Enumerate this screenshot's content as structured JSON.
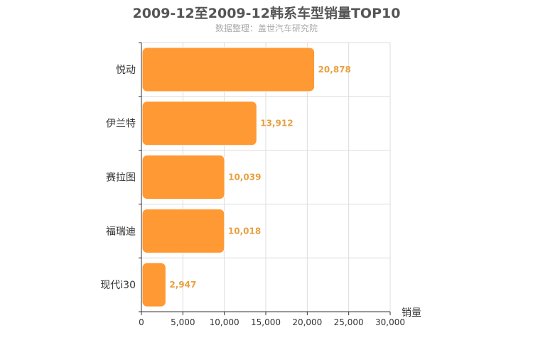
{
  "chart_data": {
    "type": "bar",
    "orientation": "horizontal",
    "title": "2009-12至2009-12韩系车型销量TOP10",
    "subtitle": "数据整理：盖世汽车研究院",
    "xlabel": "销量",
    "ylabel": "",
    "categories": [
      "悦动",
      "伊兰特",
      "赛拉图",
      "福瑞迪",
      "现代i30"
    ],
    "values": [
      20878,
      13912,
      10039,
      10018,
      2947
    ],
    "value_labels": [
      "20,878",
      "13,912",
      "10,039",
      "10,018",
      "2,947"
    ],
    "xlim": [
      0,
      30000
    ],
    "x_ticks": [
      0,
      5000,
      10000,
      15000,
      20000,
      25000,
      30000
    ],
    "x_tick_labels": [
      "0",
      "5,000",
      "10,000",
      "15,000",
      "20,000",
      "25,000",
      "30,000"
    ],
    "grid": true,
    "colors": {
      "bar": "#ff9933",
      "bar_border": "#ffffff",
      "value_label": "#e8a040",
      "axis": "#333333",
      "grid": "#dddddd",
      "title": "#555555",
      "subtitle": "#aaaaaa"
    }
  }
}
